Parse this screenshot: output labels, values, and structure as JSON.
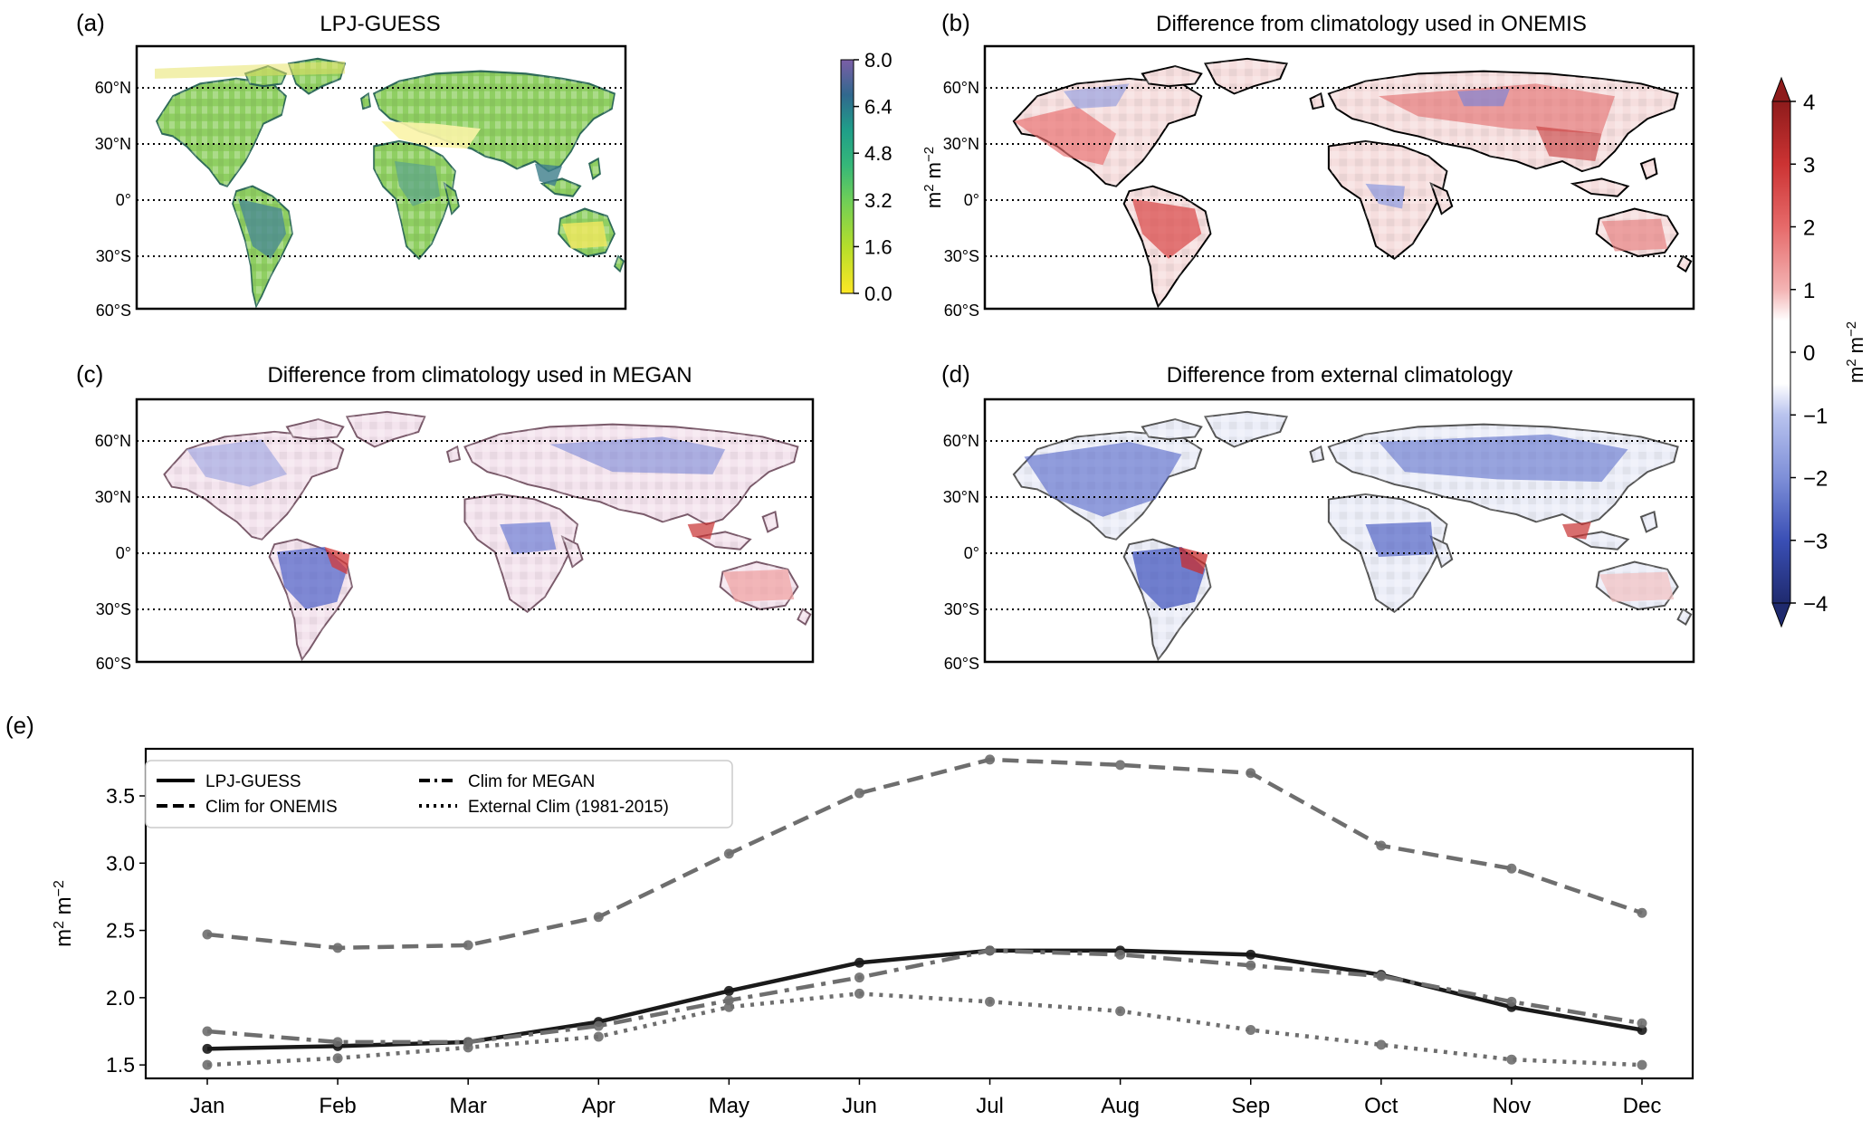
{
  "panels": {
    "a": {
      "label": "(a)",
      "title": "LPJ-GUESS",
      "colorbar": {
        "ticks": [
          "8.0",
          "6.4",
          "4.8",
          "3.2",
          "1.6",
          "0.0"
        ],
        "unit_html": "m² m⁻²",
        "cmap": "viridis_r",
        "range": [
          0.0,
          8.0
        ]
      }
    },
    "b": {
      "label": "(b)",
      "title": "Difference from climatology used in ONEMIS"
    },
    "c": {
      "label": "(c)",
      "title": "Difference from climatology used in MEGAN"
    },
    "d": {
      "label": "(d)",
      "title": "Difference from external climatology"
    },
    "e": {
      "label": "(e)"
    }
  },
  "lat_labels": [
    "60°N",
    "30°N",
    "0°",
    "30°S",
    "60°S"
  ],
  "diff_colorbar": {
    "ticks": [
      "4",
      "3",
      "2",
      "1",
      "0",
      "−1",
      "−2",
      "−3",
      "−4"
    ],
    "unit": "m² m⁻²",
    "cmap": "seismic_r",
    "range": [
      -4,
      4
    ]
  },
  "colors": {
    "line_black": "#1a1a1a",
    "line_gray": "#6e6e6e",
    "red": "#d7191c",
    "blue": "#2b3fb0"
  },
  "chart_data": {
    "type": "line",
    "categories": [
      "Jan",
      "Feb",
      "Mar",
      "Apr",
      "May",
      "Jun",
      "Jul",
      "Aug",
      "Sep",
      "Oct",
      "Nov",
      "Dec"
    ],
    "ylabel": "m² m⁻²",
    "ylim": [
      1.4,
      3.85
    ],
    "yticks": [
      "1.5",
      "2.0",
      "2.5",
      "3.0",
      "3.5"
    ],
    "grid": false,
    "legend_position": "top-left",
    "series": [
      {
        "name": "LPJ-GUESS",
        "style": "solid",
        "color": "#1a1a1a",
        "values": [
          1.62,
          1.64,
          1.67,
          1.82,
          2.05,
          2.26,
          2.35,
          2.35,
          2.32,
          2.17,
          1.93,
          1.76
        ]
      },
      {
        "name": "Clim for ONEMIS",
        "style": "dashed",
        "color": "#6e6e6e",
        "values": [
          2.47,
          2.37,
          2.39,
          2.6,
          3.07,
          3.52,
          3.77,
          3.73,
          3.67,
          3.13,
          2.96,
          2.63
        ]
      },
      {
        "name": "Clim for MEGAN",
        "style": "dashdot",
        "color": "#6e6e6e",
        "values": [
          1.75,
          1.67,
          1.67,
          1.79,
          1.98,
          2.15,
          2.35,
          2.32,
          2.24,
          2.16,
          1.97,
          1.81
        ]
      },
      {
        "name": "External Clim (1981-2015)",
        "style": "dotted",
        "color": "#6e6e6e",
        "values": [
          1.5,
          1.55,
          1.63,
          1.71,
          1.93,
          2.03,
          1.97,
          1.9,
          1.76,
          1.65,
          1.54,
          1.5
        ]
      }
    ]
  }
}
